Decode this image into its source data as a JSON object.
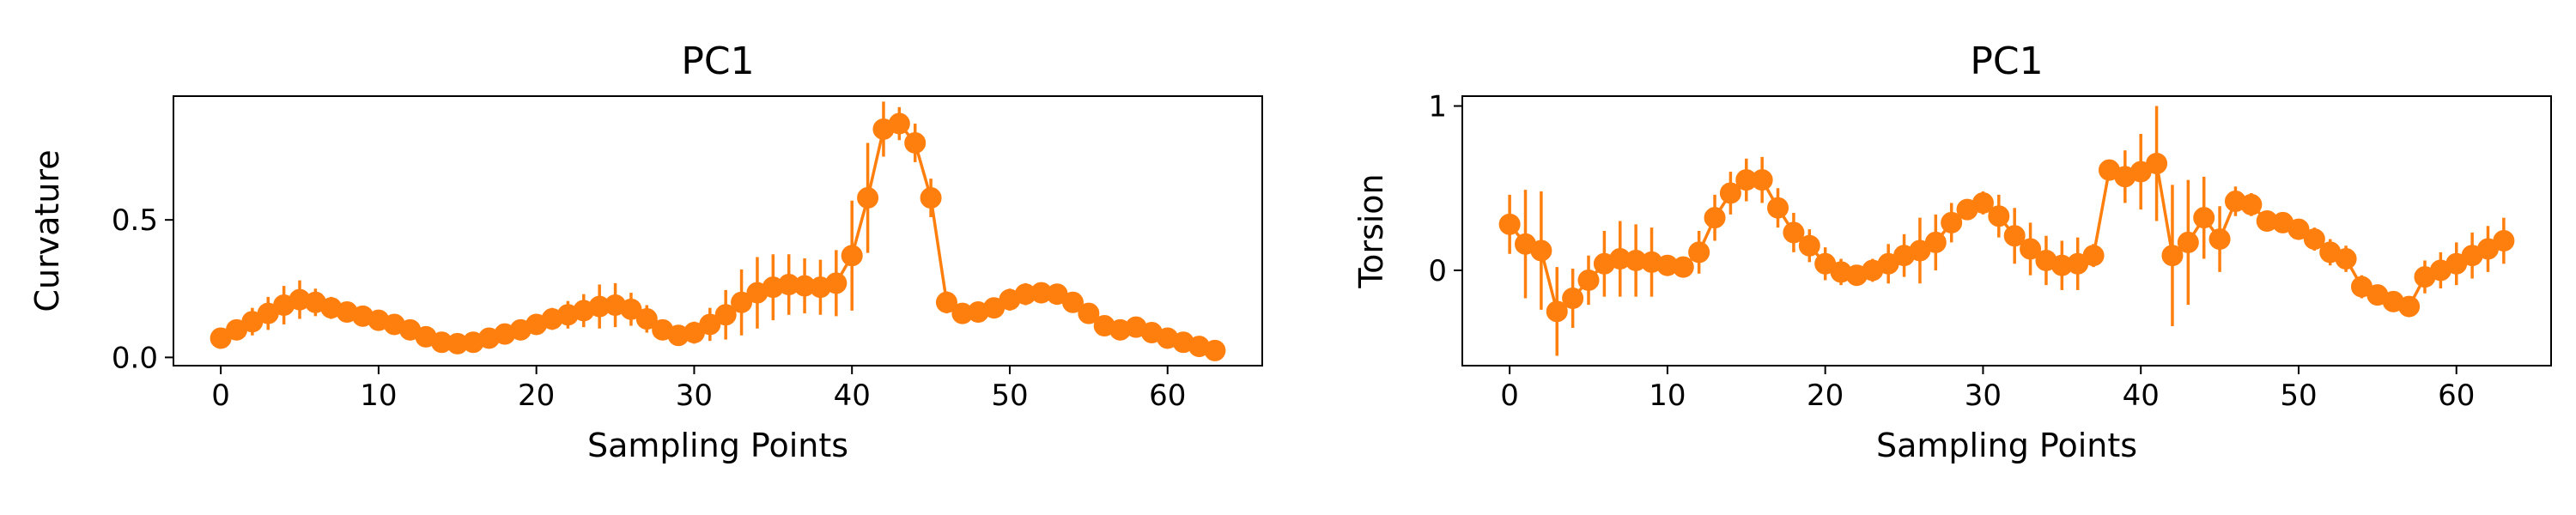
{
  "figure": {
    "color": "#ff7f0e"
  },
  "chart_data": [
    {
      "type": "line",
      "title": "PC1",
      "xlabel": "Sampling Points",
      "ylabel": "Curvature",
      "xlim": [
        -3,
        66
      ],
      "ylim": [
        -0.03,
        0.95
      ],
      "xticks": [
        0,
        10,
        20,
        30,
        40,
        50,
        60
      ],
      "xtick_labels": [
        "0",
        "10",
        "20",
        "30",
        "40",
        "50",
        "60"
      ],
      "yticks": [
        0.0,
        0.5
      ],
      "ytick_labels": [
        "0.0",
        "0.5"
      ],
      "grid": false,
      "legend": "none",
      "series": [
        {
          "color": "#ff7f0e",
          "x": [
            0,
            1,
            2,
            3,
            4,
            5,
            6,
            7,
            8,
            9,
            10,
            11,
            12,
            13,
            14,
            15,
            16,
            17,
            18,
            19,
            20,
            21,
            22,
            23,
            24,
            25,
            26,
            27,
            28,
            29,
            30,
            31,
            32,
            33,
            34,
            35,
            36,
            37,
            38,
            39,
            40,
            41,
            42,
            43,
            44,
            45,
            46,
            47,
            48,
            49,
            50,
            51,
            52,
            53,
            54,
            55,
            56,
            57,
            58,
            59,
            60,
            61,
            62,
            63
          ],
          "y": [
            0.07,
            0.1,
            0.13,
            0.16,
            0.19,
            0.21,
            0.2,
            0.18,
            0.165,
            0.15,
            0.135,
            0.12,
            0.1,
            0.075,
            0.055,
            0.05,
            0.055,
            0.07,
            0.085,
            0.1,
            0.12,
            0.14,
            0.155,
            0.17,
            0.185,
            0.19,
            0.175,
            0.14,
            0.1,
            0.08,
            0.09,
            0.12,
            0.155,
            0.2,
            0.235,
            0.255,
            0.265,
            0.26,
            0.255,
            0.27,
            0.37,
            0.58,
            0.83,
            0.85,
            0.78,
            0.58,
            0.2,
            0.16,
            0.165,
            0.18,
            0.21,
            0.23,
            0.235,
            0.23,
            0.2,
            0.16,
            0.115,
            0.1,
            0.11,
            0.09,
            0.07,
            0.055,
            0.04,
            0.025
          ],
          "err": [
            0.02,
            0.03,
            0.05,
            0.06,
            0.07,
            0.07,
            0.05,
            0.04,
            0.03,
            0.03,
            0.03,
            0.02,
            0.02,
            0.02,
            0.02,
            0.02,
            0.02,
            0.02,
            0.02,
            0.03,
            0.03,
            0.04,
            0.05,
            0.06,
            0.08,
            0.08,
            0.06,
            0.05,
            0.03,
            0.03,
            0.04,
            0.06,
            0.09,
            0.12,
            0.13,
            0.12,
            0.11,
            0.1,
            0.1,
            0.12,
            0.2,
            0.2,
            0.1,
            0.06,
            0.07,
            0.07,
            0.04,
            0.03,
            0.03,
            0.03,
            0.04,
            0.04,
            0.03,
            0.03,
            0.03,
            0.03,
            0.03,
            0.02,
            0.02,
            0.02,
            0.02,
            0.02,
            0.02,
            0.02
          ]
        }
      ]
    },
    {
      "type": "line",
      "title": "PC1",
      "xlabel": "Sampling Points",
      "ylabel": "Torsion",
      "xlim": [
        -3,
        66
      ],
      "ylim": [
        -0.58,
        1.06
      ],
      "xticks": [
        0,
        10,
        20,
        30,
        40,
        50,
        60
      ],
      "xtick_labels": [
        "0",
        "10",
        "20",
        "30",
        "40",
        "50",
        "60"
      ],
      "yticks": [
        0,
        1
      ],
      "ytick_labels": [
        "0",
        "1"
      ],
      "grid": false,
      "legend": "none",
      "series": [
        {
          "color": "#ff7f0e",
          "x": [
            0,
            1,
            2,
            3,
            4,
            5,
            6,
            7,
            8,
            9,
            10,
            11,
            12,
            13,
            14,
            15,
            16,
            17,
            18,
            19,
            20,
            21,
            22,
            23,
            24,
            25,
            26,
            27,
            28,
            29,
            30,
            31,
            32,
            33,
            34,
            35,
            36,
            37,
            38,
            39,
            40,
            41,
            42,
            43,
            44,
            45,
            46,
            47,
            48,
            49,
            50,
            51,
            52,
            53,
            54,
            55,
            56,
            57,
            58,
            59,
            60,
            61,
            62,
            63
          ],
          "y": [
            0.28,
            0.16,
            0.12,
            -0.25,
            -0.17,
            -0.06,
            0.04,
            0.07,
            0.06,
            0.05,
            0.03,
            0.02,
            0.11,
            0.32,
            0.47,
            0.55,
            0.55,
            0.38,
            0.23,
            0.15,
            0.04,
            -0.01,
            -0.03,
            0.0,
            0.04,
            0.09,
            0.12,
            0.17,
            0.29,
            0.37,
            0.41,
            0.33,
            0.21,
            0.13,
            0.06,
            0.03,
            0.04,
            0.09,
            0.61,
            0.57,
            0.6,
            0.65,
            0.09,
            0.17,
            0.32,
            0.19,
            0.42,
            0.4,
            0.3,
            0.29,
            0.25,
            0.19,
            0.11,
            0.07,
            -0.1,
            -0.15,
            -0.19,
            -0.22,
            -0.04,
            0.0,
            0.04,
            0.09,
            0.13,
            0.18
          ],
          "err": [
            0.18,
            0.33,
            0.36,
            0.27,
            0.18,
            0.15,
            0.2,
            0.23,
            0.22,
            0.21,
            0.04,
            0.05,
            0.13,
            0.14,
            0.13,
            0.13,
            0.14,
            0.12,
            0.12,
            0.1,
            0.1,
            0.08,
            0.06,
            0.07,
            0.12,
            0.13,
            0.2,
            0.17,
            0.12,
            0.06,
            0.07,
            0.13,
            0.17,
            0.16,
            0.15,
            0.15,
            0.16,
            0.07,
            0.03,
            0.16,
            0.23,
            0.35,
            0.43,
            0.38,
            0.25,
            0.2,
            0.09,
            0.07,
            0.06,
            0.05,
            0.06,
            0.07,
            0.08,
            0.08,
            0.07,
            0.06,
            0.05,
            0.04,
            0.1,
            0.11,
            0.13,
            0.14,
            0.14,
            0.14
          ]
        }
      ]
    }
  ]
}
